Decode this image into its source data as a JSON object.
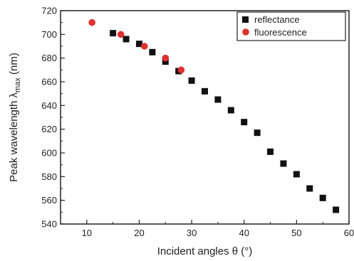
{
  "chart_data": {
    "type": "scatter",
    "title": "",
    "xlabel": "Incident angles θ (°)",
    "ylabel_main": "Peak wavelength ",
    "ylabel_symbol": "λ",
    "ylabel_sub": "max",
    "ylabel_unit": " (nm)",
    "xlim": [
      5,
      60
    ],
    "ylim": [
      540,
      720
    ],
    "xticks": [
      10,
      20,
      30,
      40,
      50,
      60
    ],
    "yticks": [
      540,
      560,
      580,
      600,
      620,
      640,
      660,
      680,
      700,
      720
    ],
    "grid": false,
    "legend_position": "top-right",
    "series": [
      {
        "name": "reflectance",
        "marker": "square",
        "color": "#111111",
        "points": [
          [
            15,
            701
          ],
          [
            17.5,
            696
          ],
          [
            20,
            692
          ],
          [
            22.5,
            685
          ],
          [
            25,
            677
          ],
          [
            27.5,
            669
          ],
          [
            30,
            661
          ],
          [
            32.5,
            652
          ],
          [
            35,
            645
          ],
          [
            37.5,
            636
          ],
          [
            40,
            626
          ],
          [
            42.5,
            617
          ],
          [
            45,
            601
          ],
          [
            47.5,
            591
          ],
          [
            50,
            582
          ],
          [
            52.5,
            570
          ],
          [
            55,
            562
          ],
          [
            57.5,
            552
          ]
        ]
      },
      {
        "name": "fluorescence",
        "marker": "circle",
        "color": "#e03030",
        "points": [
          [
            11,
            710
          ],
          [
            16.5,
            700
          ],
          [
            21,
            690
          ],
          [
            25,
            680
          ],
          [
            28,
            670
          ]
        ]
      }
    ]
  }
}
